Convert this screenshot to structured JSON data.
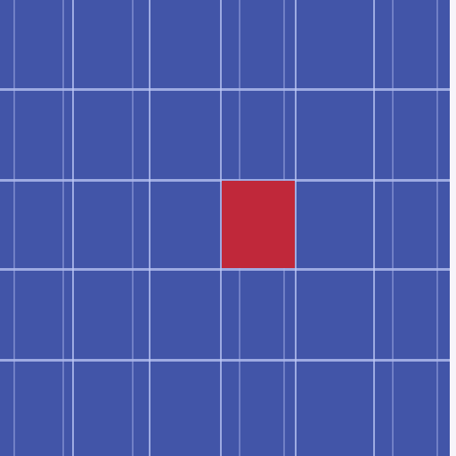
{
  "board": {
    "rows": 5,
    "cols": 6,
    "background_color": "#4255a8",
    "grid_line_color": "#c2cbf5",
    "highlighted_cells": [
      {
        "row": 2,
        "col": 3,
        "color": "#c0283a",
        "state": "selected"
      }
    ]
  }
}
